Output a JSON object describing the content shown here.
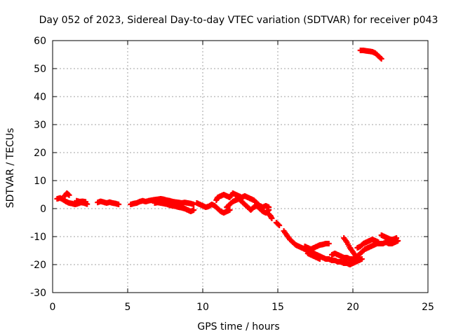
{
  "chart_data": {
    "type": "scatter",
    "title": "Day 052 of 2023, Sidereal Day-to-day VTEC variation (SDTVAR) for receiver p043",
    "xlabel": "GPS time / hours",
    "ylabel": "SDTVAR / TECUs",
    "xlim": [
      0,
      25
    ],
    "ylim": [
      -30,
      60
    ],
    "x_ticks": [
      0,
      5,
      10,
      15,
      20,
      25
    ],
    "y_ticks": [
      -30,
      -20,
      -10,
      0,
      10,
      20,
      30,
      40,
      50,
      60
    ],
    "grid": true,
    "marker": "plus",
    "color": "#ff0000",
    "series": [
      {
        "name": "SDTVAR",
        "segments": [
          [
            [
              0.3,
              3.5
            ],
            [
              0.5,
              3.8
            ],
            [
              0.7,
              3.2
            ],
            [
              0.9,
              2.5
            ],
            [
              1.1,
              2.0
            ],
            [
              1.3,
              1.8
            ],
            [
              1.5,
              1.5
            ],
            [
              1.7,
              1.8
            ],
            [
              1.9,
              2.2
            ],
            [
              2.1,
              2.0
            ],
            [
              2.3,
              1.6
            ]
          ],
          [
            [
              0.8,
              4.5
            ],
            [
              0.95,
              5.5
            ],
            [
              1.1,
              4.8
            ]
          ],
          [
            [
              1.6,
              2.8
            ],
            [
              1.8,
              2.5
            ],
            [
              2.0,
              2.6
            ],
            [
              2.2,
              2.4
            ]
          ],
          [
            [
              3.0,
              2.2
            ],
            [
              3.2,
              2.6
            ],
            [
              3.4,
              2.3
            ],
            [
              3.6,
              2.0
            ],
            [
              3.8,
              2.3
            ],
            [
              4.0,
              2.0
            ],
            [
              4.2,
              1.8
            ],
            [
              4.4,
              1.5
            ]
          ],
          [
            [
              5.2,
              1.5
            ],
            [
              5.4,
              1.8
            ],
            [
              5.6,
              2.0
            ],
            [
              5.8,
              2.5
            ],
            [
              6.0,
              2.8
            ],
            [
              6.2,
              2.5
            ],
            [
              6.4,
              2.8
            ],
            [
              6.6,
              3.0
            ],
            [
              6.8,
              3.2
            ],
            [
              7.0,
              3.3
            ],
            [
              7.2,
              3.5
            ],
            [
              7.4,
              3.3
            ],
            [
              7.6,
              3.0
            ],
            [
              7.8,
              2.8
            ],
            [
              8.0,
              2.5
            ],
            [
              8.2,
              2.3
            ],
            [
              8.4,
              2.2
            ],
            [
              8.6,
              2.0
            ],
            [
              8.8,
              2.2
            ],
            [
              9.0,
              2.0
            ],
            [
              9.2,
              1.8
            ],
            [
              9.4,
              1.5
            ]
          ],
          [
            [
              6.8,
              2.0
            ],
            [
              7.0,
              2.2
            ],
            [
              7.2,
              2.0
            ],
            [
              7.4,
              1.8
            ],
            [
              7.6,
              1.6
            ],
            [
              7.8,
              1.2
            ],
            [
              8.0,
              1.0
            ],
            [
              8.2,
              0.8
            ],
            [
              8.4,
              0.5
            ],
            [
              8.6,
              0.3
            ],
            [
              8.8,
              0.0
            ],
            [
              9.0,
              -0.5
            ],
            [
              9.2,
              -1.0
            ],
            [
              9.4,
              -0.5
            ]
          ],
          [
            [
              9.6,
              2.0
            ],
            [
              9.8,
              1.5
            ],
            [
              10.0,
              1.0
            ],
            [
              10.2,
              0.5
            ],
            [
              10.4,
              0.8
            ],
            [
              10.6,
              1.5
            ],
            [
              10.8,
              1.0
            ],
            [
              11.0,
              0.0
            ],
            [
              11.2,
              -1.0
            ],
            [
              11.4,
              -1.5
            ],
            [
              11.6,
              -1.0
            ],
            [
              11.8,
              -0.5
            ]
          ],
          [
            [
              10.9,
              3.0
            ],
            [
              11.0,
              4.0
            ],
            [
              11.2,
              4.5
            ],
            [
              11.4,
              5.0
            ],
            [
              11.6,
              4.5
            ],
            [
              11.8,
              4.0
            ],
            [
              12.0,
              5.5
            ],
            [
              12.2,
              5.0
            ],
            [
              12.4,
              4.5
            ],
            [
              12.6,
              4.0
            ],
            [
              12.8,
              4.5
            ],
            [
              13.0,
              4.0
            ],
            [
              13.2,
              3.5
            ],
            [
              13.4,
              3.0
            ],
            [
              13.6,
              2.0
            ],
            [
              13.8,
              1.0
            ],
            [
              14.0,
              0.5
            ],
            [
              14.2,
              1.0
            ],
            [
              14.4,
              0.5
            ]
          ],
          [
            [
              11.6,
              0.5
            ],
            [
              11.8,
              1.5
            ],
            [
              12.0,
              2.5
            ],
            [
              12.2,
              3.0
            ],
            [
              12.4,
              3.5
            ],
            [
              12.6,
              2.5
            ],
            [
              12.8,
              1.5
            ],
            [
              13.0,
              0.5
            ],
            [
              13.2,
              -0.5
            ],
            [
              13.4,
              0.5
            ],
            [
              13.6,
              1.0
            ],
            [
              13.8,
              0.0
            ],
            [
              14.0,
              -1.0
            ],
            [
              14.2,
              -1.5
            ],
            [
              14.4,
              -0.5
            ]
          ],
          [
            [
              14.3,
              -1.5
            ],
            [
              14.5,
              -2.5
            ],
            [
              14.6,
              -3.5
            ]
          ],
          [
            [
              14.9,
              -5.0
            ],
            [
              15.1,
              -6.0
            ]
          ],
          [
            [
              15.4,
              -8.0
            ],
            [
              15.6,
              -9.5
            ],
            [
              15.8,
              -11.0
            ],
            [
              16.0,
              -12.0
            ],
            [
              16.2,
              -13.0
            ],
            [
              16.4,
              -13.5
            ],
            [
              16.6,
              -14.0
            ],
            [
              16.8,
              -14.5
            ],
            [
              17.0,
              -15.0
            ],
            [
              17.2,
              -15.5
            ],
            [
              17.4,
              -16.0
            ],
            [
              17.6,
              -16.5
            ],
            [
              17.8,
              -17.0
            ],
            [
              18.0,
              -17.5
            ],
            [
              18.2,
              -18.0
            ],
            [
              18.4,
              -18.0
            ],
            [
              18.6,
              -18.5
            ],
            [
              18.8,
              -18.5
            ],
            [
              19.0,
              -19.0
            ],
            [
              19.2,
              -19.0
            ],
            [
              19.4,
              -19.5
            ],
            [
              19.6,
              -19.5
            ],
            [
              19.8,
              -20.0
            ],
            [
              20.0,
              -19.5
            ],
            [
              20.2,
              -19.0
            ],
            [
              20.4,
              -18.5
            ],
            [
              20.6,
              -18.0
            ]
          ],
          [
            [
              16.8,
              -13.5
            ],
            [
              17.0,
              -14.0
            ],
            [
              17.2,
              -14.5
            ],
            [
              17.4,
              -14.0
            ],
            [
              17.6,
              -13.5
            ],
            [
              17.8,
              -13.0
            ],
            [
              18.0,
              -12.8
            ],
            [
              18.2,
              -12.5
            ],
            [
              18.4,
              -12.5
            ]
          ],
          [
            [
              17.0,
              -16.0
            ],
            [
              17.2,
              -16.5
            ],
            [
              17.4,
              -17.0
            ],
            [
              17.6,
              -17.5
            ],
            [
              17.8,
              -18.0
            ]
          ],
          [
            [
              18.6,
              -16.5
            ],
            [
              18.8,
              -16.0
            ],
            [
              19.0,
              -16.5
            ],
            [
              19.2,
              -17.0
            ],
            [
              19.4,
              -17.5
            ],
            [
              19.6,
              -17.5
            ],
            [
              19.8,
              -18.0
            ],
            [
              20.0,
              -18.0
            ],
            [
              20.2,
              -17.5
            ],
            [
              20.4,
              -16.5
            ],
            [
              20.6,
              -15.5
            ],
            [
              20.8,
              -14.5
            ],
            [
              21.0,
              -14.0
            ],
            [
              21.2,
              -13.5
            ],
            [
              21.4,
              -13.0
            ],
            [
              21.6,
              -12.5
            ],
            [
              21.8,
              -12.5
            ],
            [
              22.0,
              -12.5
            ],
            [
              22.2,
              -12.0
            ],
            [
              22.4,
              -12.5
            ],
            [
              22.6,
              -12.5
            ],
            [
              22.8,
              -12.0
            ],
            [
              23.0,
              -11.5
            ]
          ],
          [
            [
              19.4,
              -10.5
            ],
            [
              19.6,
              -12.0
            ],
            [
              19.8,
              -14.0
            ],
            [
              20.0,
              -15.5
            ],
            [
              20.2,
              -17.0
            ],
            [
              20.4,
              -17.5
            ]
          ],
          [
            [
              20.3,
              -14.0
            ],
            [
              20.5,
              -13.5
            ],
            [
              20.7,
              -12.5
            ],
            [
              20.9,
              -12.0
            ],
            [
              21.1,
              -11.5
            ],
            [
              21.3,
              -11.0
            ],
            [
              21.5,
              -11.5
            ],
            [
              21.7,
              -12.0
            ]
          ],
          [
            [
              21.9,
              -9.5
            ],
            [
              22.1,
              -10.0
            ],
            [
              22.3,
              -10.5
            ],
            [
              22.5,
              -11.0
            ],
            [
              22.7,
              -11.0
            ],
            [
              22.9,
              -10.5
            ]
          ],
          [
            [
              20.5,
              56.5
            ],
            [
              20.7,
              56.5
            ],
            [
              20.9,
              56.3
            ],
            [
              21.1,
              56.2
            ],
            [
              21.3,
              56.0
            ],
            [
              21.5,
              55.5
            ],
            [
              21.7,
              54.5
            ],
            [
              21.9,
              53.5
            ]
          ]
        ]
      }
    ]
  }
}
